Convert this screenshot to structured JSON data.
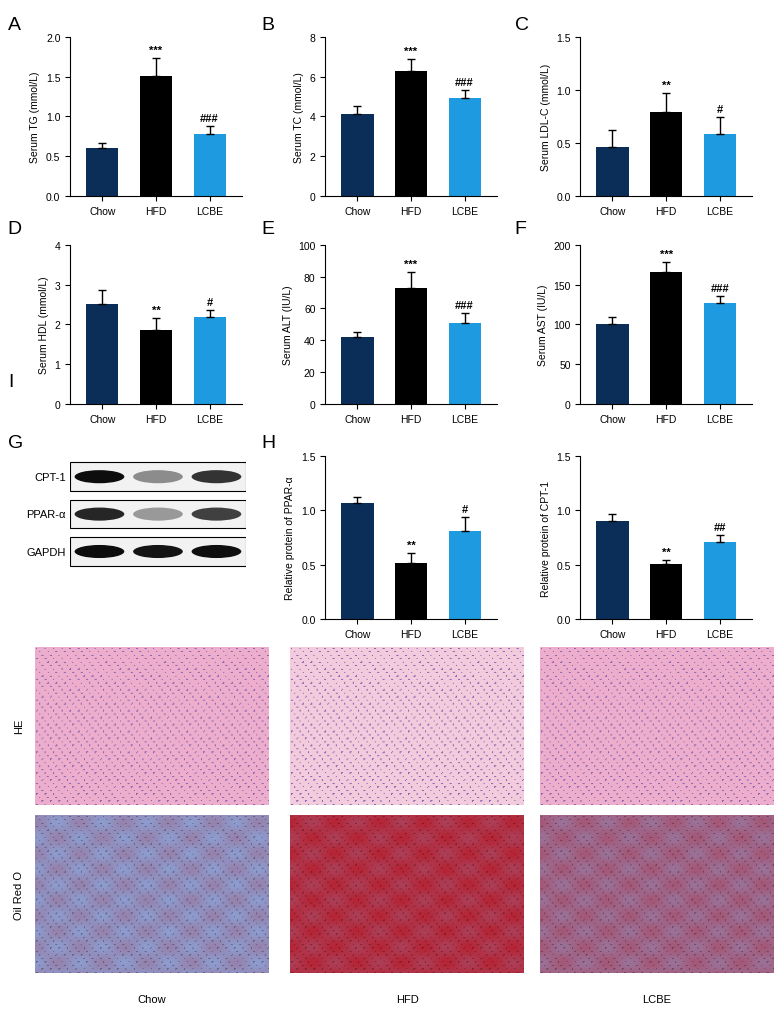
{
  "chart_data": [
    {
      "type": "bar",
      "panel": "A",
      "y_label": "Serum TG (mmol/L)",
      "categories": [
        "Chow",
        "HFD",
        "LCBE"
      ],
      "values": [
        0.6,
        1.51,
        0.78
      ],
      "errors": [
        0.07,
        0.22,
        0.1
      ],
      "significance": [
        null,
        "***",
        "###"
      ],
      "colors": [
        "#0b2e59",
        "#000000",
        "#1e9be0"
      ],
      "ylim": [
        0,
        2.0
      ],
      "yticks": [
        {
          "value": 0,
          "label": "0.0"
        },
        0.5,
        {
          "value": 1,
          "label": "1.0"
        },
        1.5,
        {
          "value": 2,
          "label": "2.0"
        }
      ]
    },
    {
      "type": "bar",
      "panel": "B",
      "y_label": "Serum TC (mmol/L)",
      "categories": [
        "Chow",
        "HFD",
        "LCBE"
      ],
      "values": [
        4.1,
        6.3,
        4.9
      ],
      "errors": [
        0.4,
        0.6,
        0.4
      ],
      "significance": [
        null,
        "***",
        "###"
      ],
      "colors": [
        "#0b2e59",
        "#000000",
        "#1e9be0"
      ],
      "ylim": [
        0,
        8
      ],
      "yticks": [
        0,
        2,
        4,
        6,
        8
      ]
    },
    {
      "type": "bar",
      "panel": "C",
      "y_label": "Serum LDL-C (mmol/L)",
      "categories": [
        "Chow",
        "HFD",
        "LCBE"
      ],
      "values": [
        0.46,
        0.79,
        0.58
      ],
      "errors": [
        0.16,
        0.18,
        0.16
      ],
      "significance": [
        null,
        "**",
        "#"
      ],
      "colors": [
        "#0b2e59",
        "#000000",
        "#1e9be0"
      ],
      "ylim": [
        0,
        1.5
      ],
      "yticks": [
        {
          "value": 0,
          "label": "0.0"
        },
        0.5,
        {
          "value": 1,
          "label": "1.0"
        },
        1.5
      ]
    },
    {
      "type": "bar",
      "panel": "D",
      "y_label": "Serum HDL (mmol/L)",
      "categories": [
        "Chow",
        "HFD",
        "LCBE"
      ],
      "values": [
        2.52,
        1.87,
        2.18
      ],
      "errors": [
        0.35,
        0.28,
        0.18
      ],
      "significance": [
        null,
        "**",
        "#"
      ],
      "colors": [
        "#0b2e59",
        "#000000",
        "#1e9be0"
      ],
      "ylim": [
        0,
        4
      ],
      "yticks": [
        0,
        1,
        2,
        3,
        4
      ]
    },
    {
      "type": "bar",
      "panel": "E",
      "y_label": "Serum ALT (IU/L)",
      "categories": [
        "Chow",
        "HFD",
        "LCBE"
      ],
      "values": [
        42,
        73,
        51
      ],
      "errors": [
        3,
        10,
        6
      ],
      "significance": [
        null,
        "***",
        "###"
      ],
      "colors": [
        "#0b2e59",
        "#000000",
        "#1e9be0"
      ],
      "ylim": [
        0,
        100
      ],
      "yticks": [
        0,
        20,
        40,
        60,
        80,
        100
      ]
    },
    {
      "type": "bar",
      "panel": "F",
      "y_label": "Serum AST (IU/L)",
      "categories": [
        "Chow",
        "HFD",
        "LCBE"
      ],
      "values": [
        100,
        166,
        127
      ],
      "errors": [
        9,
        12,
        9
      ],
      "significance": [
        null,
        "***",
        "###"
      ],
      "colors": [
        "#0b2e59",
        "#000000",
        "#1e9be0"
      ],
      "ylim": [
        0,
        200
      ],
      "yticks": [
        0,
        50,
        100,
        150,
        200
      ]
    },
    {
      "type": "bar",
      "panel": "H",
      "y_label": "Relative protein of PPAR-α",
      "categories": [
        "Chow",
        "HFD",
        "LCBE"
      ],
      "values": [
        1.07,
        0.52,
        0.81
      ],
      "errors": [
        0.05,
        0.09,
        0.13
      ],
      "significance": [
        null,
        "**",
        "#"
      ],
      "colors": [
        "#0b2e59",
        "#000000",
        "#1e9be0"
      ],
      "ylim": [
        0,
        1.5
      ],
      "yticks": [
        {
          "value": 0,
          "label": "0.0"
        },
        0.5,
        {
          "value": 1,
          "label": "1.0"
        },
        1.5
      ]
    },
    {
      "type": "bar",
      "y_label": "Relative protein of CPT-1",
      "categories": [
        "Chow",
        "HFD",
        "LCBE"
      ],
      "values": [
        0.9,
        0.51,
        0.71
      ],
      "errors": [
        0.07,
        0.03,
        0.06
      ],
      "significance": [
        null,
        "**",
        "##"
      ],
      "colors": [
        "#0b2e59",
        "#000000",
        "#1e9be0"
      ],
      "ylim": [
        0,
        1.5
      ],
      "yticks": [
        {
          "value": 0,
          "label": "0.0"
        },
        0.5,
        {
          "value": 1,
          "label": "1.0"
        },
        1.5
      ]
    }
  ],
  "western_blot": {
    "panel": "G",
    "bands": [
      "CPT-1",
      "PPAR-α",
      "GAPDH"
    ]
  },
  "histology": {
    "panel": "I",
    "rows": [
      "HE",
      "Oil Red O"
    ],
    "columns": [
      "Chow",
      "HFD",
      "LCBE"
    ]
  }
}
